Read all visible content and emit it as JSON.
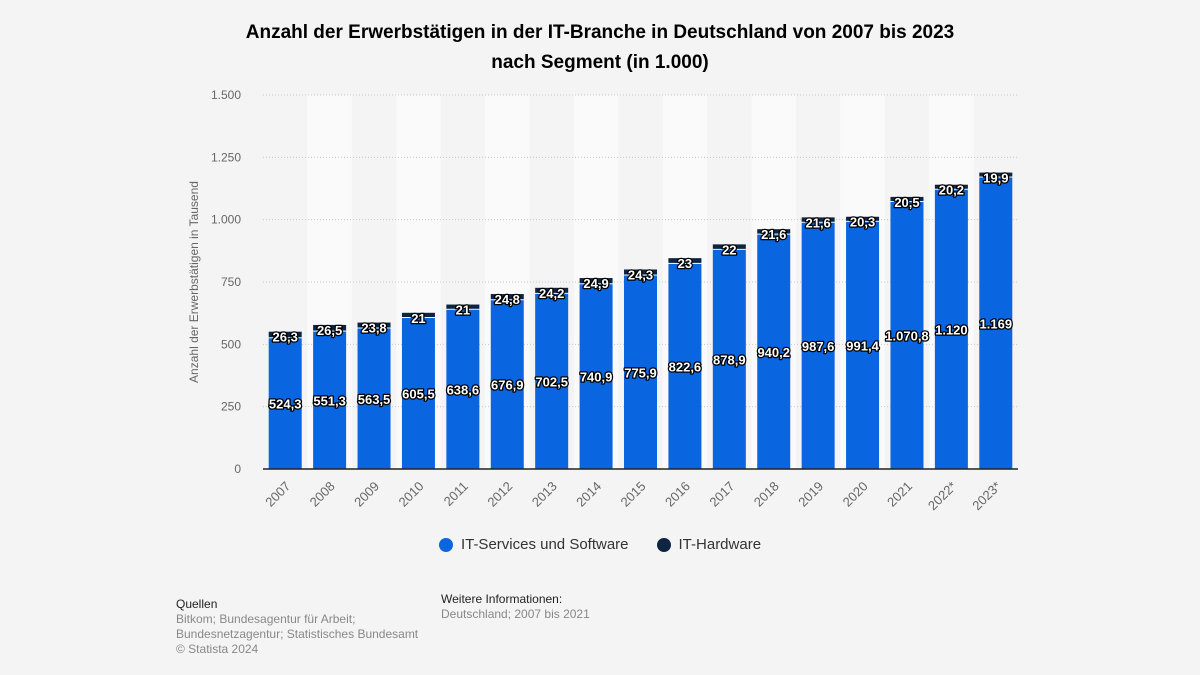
{
  "chart_data": {
    "type": "bar",
    "stacked": true,
    "title": "Anzahl der Erwerbstätigen in der IT-Branche in Deutschland von 2007 bis 2023 nach Segment (in 1.000)",
    "title_lines": [
      "Anzahl der Erwerbstätigen in der IT-Branche in Deutschland von 2007 bis 2023",
      "nach Segment (in 1.000)"
    ],
    "xlabel": "",
    "ylabel": "Anzahl der Erwerbstätigen in Tausend",
    "ylim": [
      0,
      1500
    ],
    "yticks": [
      0,
      250,
      500,
      750,
      1000,
      1250,
      1500
    ],
    "ytick_labels": [
      "0",
      "250",
      "500",
      "750",
      "1.000",
      "1.250",
      "1.500"
    ],
    "grid": true,
    "legend_position": "bottom",
    "categories": [
      "2007",
      "2008",
      "2009",
      "2010",
      "2011",
      "2012",
      "2013",
      "2014",
      "2015",
      "2016",
      "2017",
      "2018",
      "2019",
      "2020",
      "2021",
      "2022*",
      "2023*"
    ],
    "series": [
      {
        "name": "IT-Services und Software",
        "color": "#0a66e0",
        "values": [
          524.3,
          551.3,
          563.5,
          605.5,
          638.6,
          676.9,
          702.5,
          740.9,
          775.9,
          822.6,
          878.9,
          940.2,
          987.6,
          991.4,
          1070.8,
          1120,
          1169
        ],
        "labels": [
          "524,3",
          "551,3",
          "563,5",
          "605,5",
          "638,6",
          "676,9",
          "702,5",
          "740,9",
          "775,9",
          "822,6",
          "878,9",
          "940,2",
          "987,6",
          "991,4",
          "1.070,8",
          "1.120",
          "1.169"
        ]
      },
      {
        "name": "IT-Hardware",
        "color": "#0e2541",
        "values": [
          26.3,
          26.5,
          23.8,
          21,
          21,
          24.8,
          24.2,
          24.9,
          24.3,
          23,
          22,
          21.6,
          21.6,
          20.3,
          20.5,
          20.2,
          19.9
        ],
        "labels": [
          "26,3",
          "26,5",
          "23,8",
          "21",
          "21",
          "24,8",
          "24,2",
          "24,9",
          "24,3",
          "23",
          "22",
          "21,6",
          "21,6",
          "20,3",
          "20,5",
          "20,2",
          "19,9"
        ]
      }
    ]
  },
  "footer": {
    "sources_heading": "Quellen",
    "sources_line1": "Bitkom; Bundesagentur für Arbeit;",
    "sources_line2": "Bundesnetzagentur; Statistisches Bundesamt",
    "copyright": "© Statista 2024",
    "info_heading": "Weitere Informationen:",
    "info_text": "Deutschland; 2007 bis 2021"
  }
}
